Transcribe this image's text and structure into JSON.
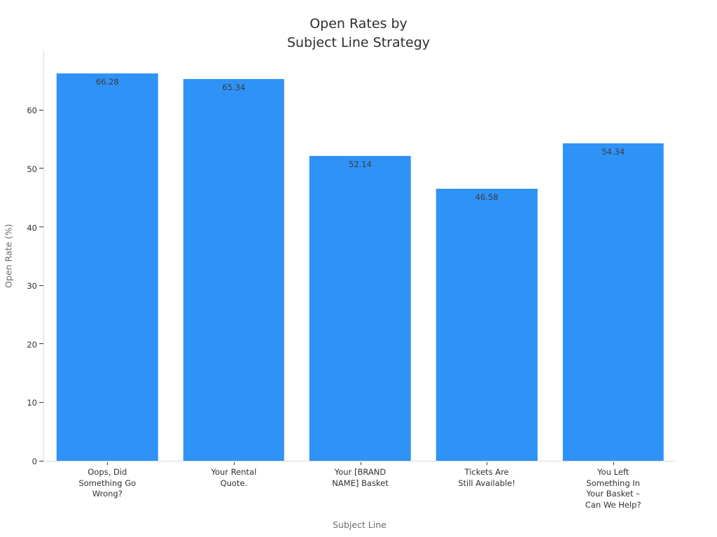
{
  "chart_data": {
    "type": "bar",
    "title": "Open Rates by\nSubject Line Strategy",
    "xlabel": "Subject Line",
    "ylabel": "Open Rate (%)",
    "categories": [
      "Oops, Did Something Go Wrong?",
      "Your Rental Quote.",
      "Your [BRAND NAME] Basket",
      "Tickets Are Still Available!",
      "You Left Something In Your Basket – Can We Help?"
    ],
    "category_lines": [
      [
        "Oops, Did",
        "Something Go",
        "Wrong?"
      ],
      [
        "Your Rental",
        "Quote."
      ],
      [
        "Your [BRAND",
        "NAME] Basket"
      ],
      [
        "Tickets Are",
        "Still Available!"
      ],
      [
        "You Left",
        "Something In",
        "Your Basket –",
        "Can We Help?"
      ]
    ],
    "values": [
      66.28,
      65.34,
      52.14,
      46.58,
      54.34
    ],
    "value_labels": [
      "66.28",
      "65.34",
      "52.14",
      "46.58",
      "54.34"
    ],
    "yticks": [
      0,
      10,
      20,
      30,
      40,
      50,
      60
    ],
    "ylim": [
      0,
      70.2
    ],
    "grid": false,
    "legend": null,
    "bar_color": "#2F92F7",
    "background": "#FFFFFF",
    "value_label_position": "inside-top"
  }
}
